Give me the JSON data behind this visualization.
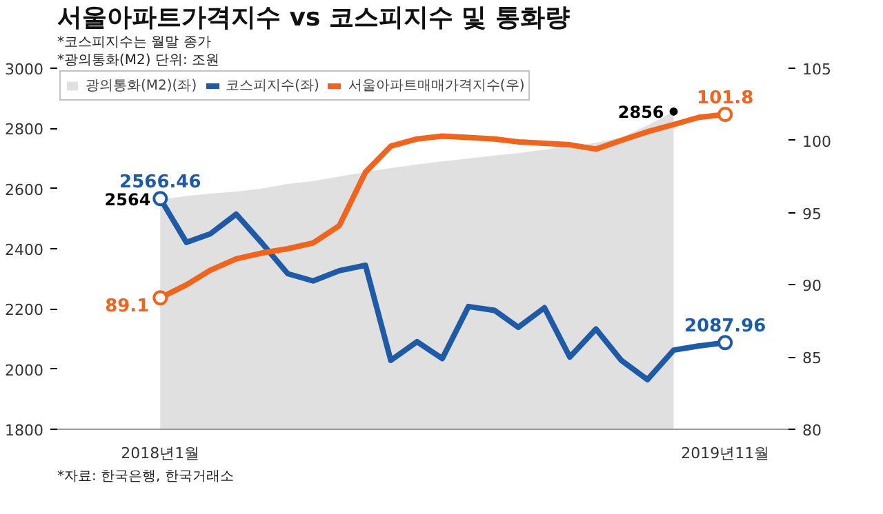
{
  "chart_data": {
    "type": "line",
    "title": "서울아파트가격지수 vs 코스피지수 및 통화량",
    "x": [
      "2018-01",
      "2018-02",
      "2018-03",
      "2018-04",
      "2018-05",
      "2018-06",
      "2018-07",
      "2018-08",
      "2018-09",
      "2018-10",
      "2018-11",
      "2018-12",
      "2019-01",
      "2019-02",
      "2019-03",
      "2019-04",
      "2019-05",
      "2019-06",
      "2019-07",
      "2019-08",
      "2019-09",
      "2019-10",
      "2019-11"
    ],
    "series": [
      {
        "name": "광의통화(M2)(좌)",
        "type": "area",
        "color": "#e0e0e0",
        "values": [
          2564,
          2575,
          2583,
          2590,
          2600,
          2615,
          2625,
          2640,
          2655,
          2668,
          2680,
          2690,
          2700,
          2710,
          2718,
          2730,
          2740,
          2752,
          2770,
          2810,
          2856,
          null,
          null
        ],
        "value_labels": [
          "2564",
          null,
          null,
          null,
          null,
          null,
          null,
          null,
          null,
          null,
          null,
          null,
          null,
          null,
          null,
          null,
          null,
          null,
          null,
          null,
          "2856",
          null,
          null
        ]
      },
      {
        "name": "코스피지수(좌)",
        "color": "#1f5aa6",
        "values": [
          2566.46,
          2421,
          2449,
          2515,
          2420,
          2317,
          2293,
          2327,
          2345,
          2029,
          2091,
          2035,
          2208,
          2195,
          2139,
          2204,
          2040,
          2133,
          2029,
          1965,
          2063,
          2077,
          2087.96
        ],
        "value_labels": [
          "2566.46",
          null,
          null,
          null,
          null,
          null,
          null,
          null,
          null,
          null,
          null,
          null,
          null,
          null,
          null,
          null,
          null,
          null,
          null,
          null,
          null,
          null,
          "2087.96"
        ]
      },
      {
        "name": "서울아파트매매가격지수(우)",
        "axis": "y2",
        "color": "#f0641e",
        "values": [
          89.1,
          90.0,
          91.0,
          91.8,
          92.2,
          92.5,
          92.9,
          94.1,
          97.8,
          99.6,
          100.1,
          100.3,
          100.2,
          100.1,
          99.9,
          99.8,
          99.7,
          99.4,
          100.0,
          100.6,
          101.1,
          101.6,
          101.8
        ],
        "value_labels": [
          "89.1",
          null,
          null,
          null,
          null,
          null,
          null,
          null,
          null,
          null,
          null,
          null,
          null,
          null,
          null,
          null,
          null,
          null,
          null,
          null,
          null,
          null,
          "101.8"
        ]
      }
    ],
    "xlim": [
      "2017-09-01",
      "2020-01-15"
    ],
    "xticks": [
      {
        "value": "2018-01",
        "label": "2018년1월"
      },
      {
        "value": "2019-11",
        "label": "2019년11월"
      }
    ],
    "ylim": [
      1800,
      3000
    ],
    "yticks": [
      1800,
      2000,
      2200,
      2400,
      2600,
      2800,
      3000
    ],
    "y2lim": [
      80,
      105
    ],
    "y2ticks": [
      80,
      85,
      90,
      95,
      100,
      105
    ],
    "grid": false,
    "legend": "top left",
    "annotations": [
      "*코스피지수는 월말 종가",
      "*광의통화(M2) 단위: 조원",
      "*자료: 한국은행, 한국거래소"
    ]
  }
}
